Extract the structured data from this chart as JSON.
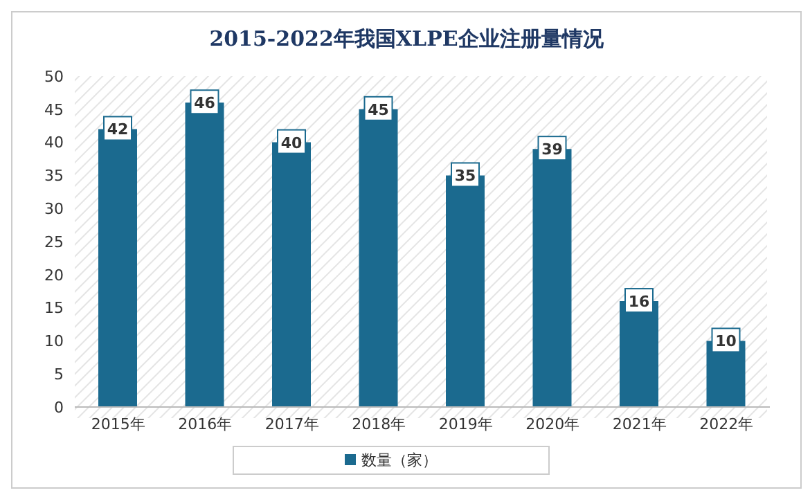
{
  "chart_data": {
    "type": "bar",
    "title": "2015-2022年我国XLPE企业注册量情况",
    "categories": [
      "2015年",
      "2016年",
      "2017年",
      "2018年",
      "2019年",
      "2020年",
      "2021年",
      "2022年"
    ],
    "series": [
      {
        "name": "数量（家）",
        "color": "#1b6a8f",
        "values": [
          42,
          46,
          40,
          45,
          35,
          39,
          16,
          10
        ]
      }
    ],
    "ylim": [
      0,
      50
    ],
    "yticks": [
      0,
      5,
      10,
      15,
      20,
      25,
      30,
      35,
      40,
      45,
      50
    ],
    "grid": false,
    "legend": "bottom",
    "data_labels": true
  }
}
